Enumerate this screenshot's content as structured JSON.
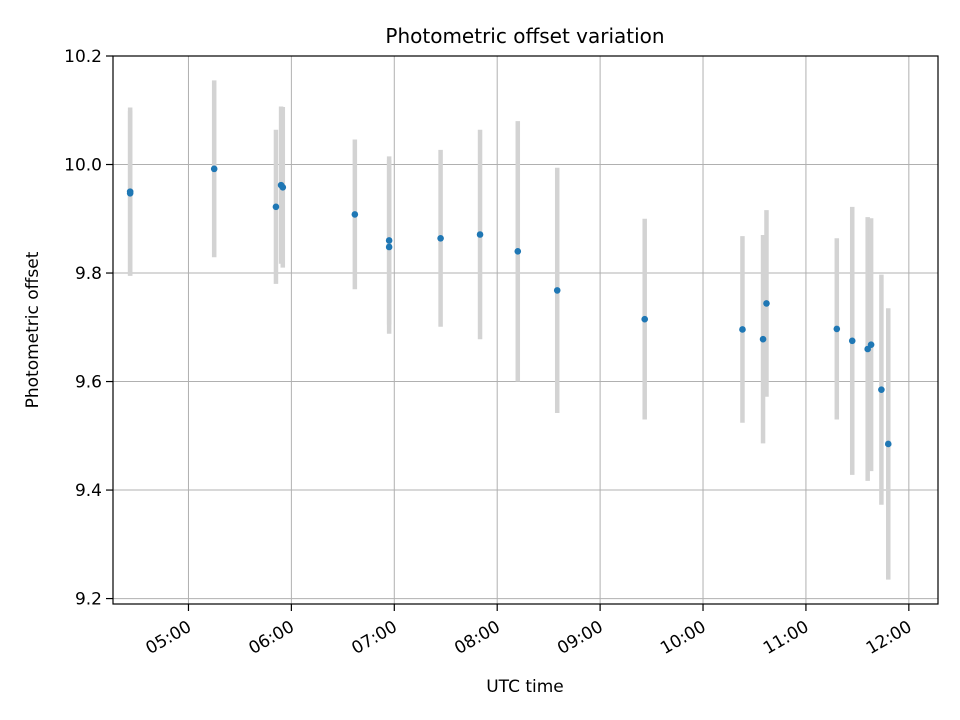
{
  "chart_data": {
    "type": "scatter",
    "title": "Photometric offset variation",
    "xlabel": "UTC time",
    "ylabel": "Photometric offset",
    "xlim": [
      "04:16",
      "12:17"
    ],
    "ylim": [
      9.19,
      10.2
    ],
    "x_ticks": [
      "05:00",
      "06:00",
      "07:00",
      "08:00",
      "09:00",
      "10:00",
      "11:00",
      "12:00"
    ],
    "y_ticks": [
      "9.2",
      "9.4",
      "9.6",
      "9.8",
      "10.0",
      "10.2"
    ],
    "grid": true,
    "marker_color": "#1f77b4",
    "errorbar_color": "#d3d3d3",
    "points": [
      {
        "x": "04:26",
        "y": 9.95,
        "err": 0.155
      },
      {
        "x": "04:26",
        "y": 9.947,
        "err": 0.152
      },
      {
        "x": "05:15",
        "y": 9.992,
        "err": 0.163
      },
      {
        "x": "05:51",
        "y": 9.922,
        "err": 0.142
      },
      {
        "x": "05:54",
        "y": 9.962,
        "err": 0.145
      },
      {
        "x": "05:55",
        "y": 9.958,
        "err": 0.148
      },
      {
        "x": "06:37",
        "y": 9.908,
        "err": 0.138
      },
      {
        "x": "06:57",
        "y": 9.86,
        "err": 0.155
      },
      {
        "x": "06:57",
        "y": 9.848,
        "err": 0.16
      },
      {
        "x": "07:27",
        "y": 9.864,
        "err": 0.163
      },
      {
        "x": "07:50",
        "y": 9.871,
        "err": 0.193
      },
      {
        "x": "08:12",
        "y": 9.84,
        "err": 0.24
      },
      {
        "x": "08:35",
        "y": 9.768,
        "err": 0.226
      },
      {
        "x": "09:26",
        "y": 9.715,
        "err": 0.185
      },
      {
        "x": "10:23",
        "y": 9.696,
        "err": 0.172
      },
      {
        "x": "10:35",
        "y": 9.678,
        "err": 0.192
      },
      {
        "x": "10:37",
        "y": 9.744,
        "err": 0.172
      },
      {
        "x": "11:18",
        "y": 9.697,
        "err": 0.167
      },
      {
        "x": "11:27",
        "y": 9.675,
        "err": 0.247
      },
      {
        "x": "11:36",
        "y": 9.66,
        "err": 0.243
      },
      {
        "x": "11:38",
        "y": 9.668,
        "err": 0.233
      },
      {
        "x": "11:44",
        "y": 9.585,
        "err": 0.212
      },
      {
        "x": "11:48",
        "y": 9.485,
        "err": 0.25
      }
    ]
  }
}
